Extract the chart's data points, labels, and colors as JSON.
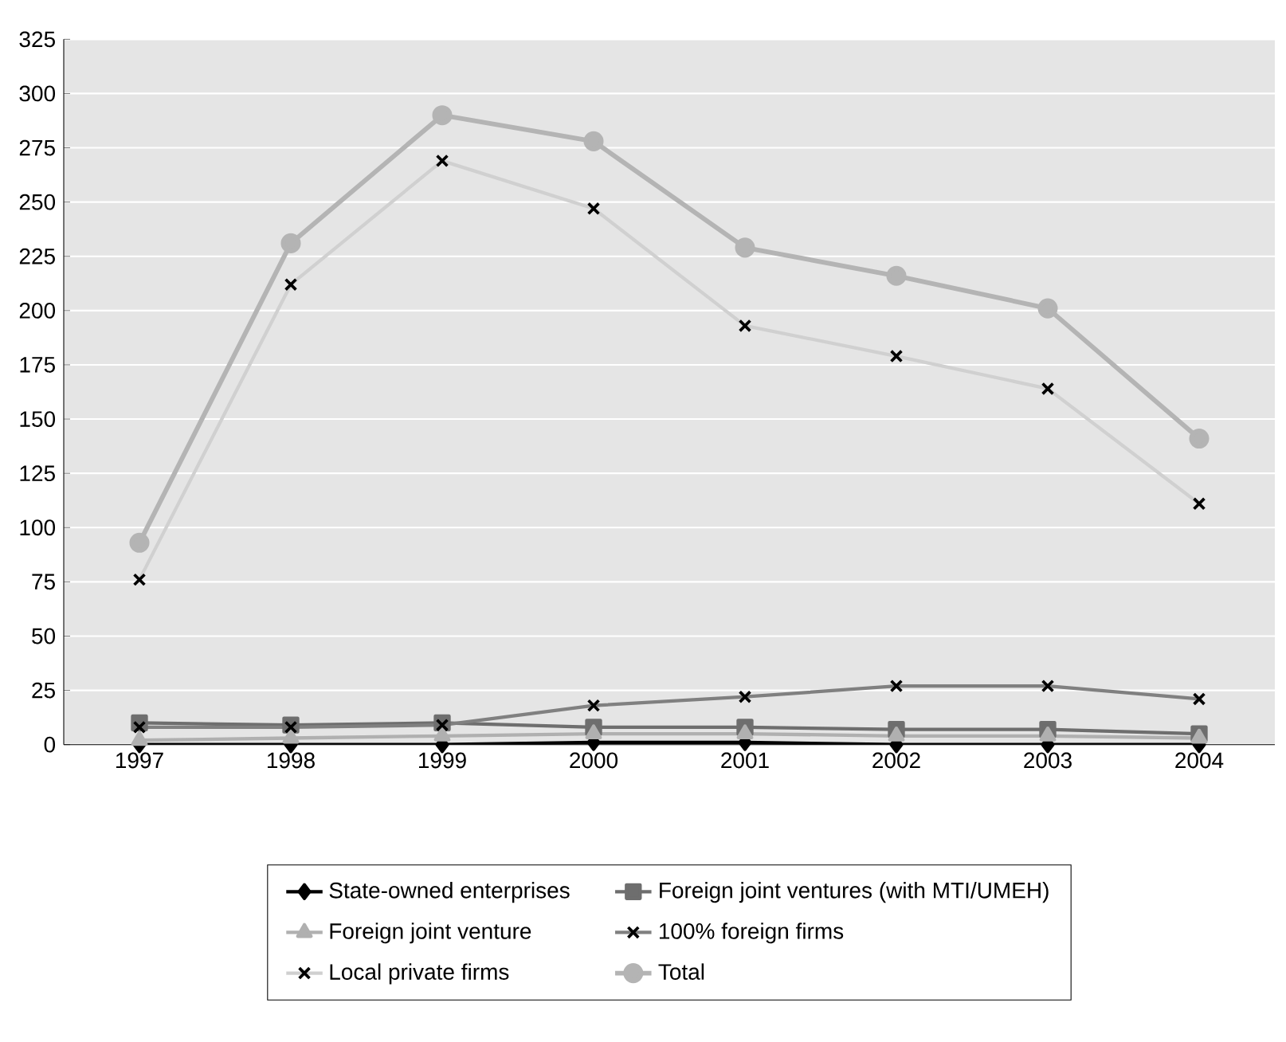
{
  "chart_data": {
    "type": "line",
    "categories": [
      "1997",
      "1998",
      "1999",
      "2000",
      "2001",
      "2002",
      "2003",
      "2004"
    ],
    "series": [
      {
        "name": "State-owned enterprises",
        "color": "#000000",
        "marker": "diamond",
        "values": [
          0,
          0,
          0,
          1,
          1,
          0,
          0,
          0
        ]
      },
      {
        "name": "Foreign joint ventures (with MTI/UMEH)",
        "color": "#6e6e6e",
        "marker": "square",
        "values": [
          10,
          9,
          10,
          8,
          8,
          7,
          7,
          5
        ]
      },
      {
        "name": "Foreign joint venture",
        "color": "#b0b0b0",
        "marker": "triangle",
        "values": [
          2,
          3,
          4,
          5,
          5,
          4,
          4,
          3
        ]
      },
      {
        "name": "100% foreign firms",
        "color": "#808080",
        "marker": "cross",
        "values": [
          8,
          8,
          9,
          18,
          22,
          27,
          27,
          21
        ]
      },
      {
        "name": "Local private firms",
        "color": "#d0d0d0",
        "marker": "cross",
        "values": [
          76,
          212,
          269,
          247,
          193,
          179,
          164,
          111
        ]
      },
      {
        "name": "Total",
        "color": "#b4b4b4",
        "marker": "circle",
        "values": [
          93,
          231,
          290,
          278,
          229,
          216,
          201,
          141
        ]
      }
    ],
    "ylim": [
      0,
      325
    ],
    "yticks": [
      0,
      25,
      50,
      75,
      100,
      125,
      150,
      175,
      200,
      225,
      250,
      275,
      300,
      325
    ],
    "grid": "y",
    "legend": "bottom",
    "line_style": "solid"
  }
}
